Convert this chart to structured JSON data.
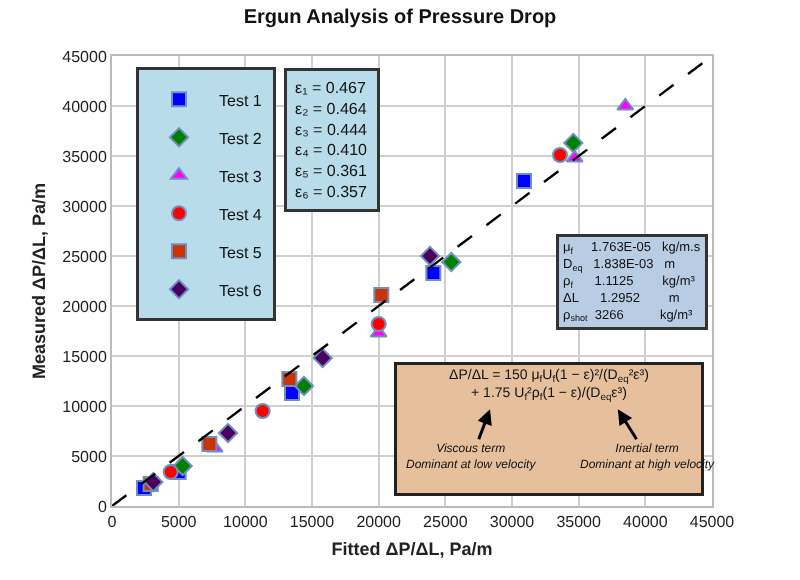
{
  "chart_data": {
    "type": "scatter",
    "title": "Ergun Analysis of Pressure Drop",
    "xlabel": "Fitted ΔP/ΔL, Pa/m",
    "ylabel": "Measured ΔP/ΔL, Pa/m",
    "xlim": [
      0,
      45000
    ],
    "ylim": [
      0,
      45000
    ],
    "xticks": [
      0,
      5000,
      10000,
      15000,
      20000,
      25000,
      30000,
      35000,
      40000,
      45000
    ],
    "yticks": [
      0,
      5000,
      10000,
      15000,
      20000,
      25000,
      30000,
      35000,
      40000,
      45000
    ],
    "grid": true,
    "legend": "top left",
    "series": [
      {
        "name": "Test 1",
        "color": "#0000ff",
        "marker": "square",
        "x": [
          2400,
          5000,
          13500,
          24100,
          30900
        ],
        "values": [
          1800,
          3400,
          11300,
          23300,
          32500
        ]
      },
      {
        "name": "Test 2",
        "color": "#008000",
        "marker": "diamond",
        "x": [
          5300,
          14400,
          25450,
          34600
        ],
        "values": [
          4000,
          12000,
          24400,
          36300
        ]
      },
      {
        "name": "Test 3",
        "color": "#ff00ff",
        "marker": "triangle",
        "x": [
          7700,
          20000,
          34700,
          38500
        ],
        "values": [
          5800,
          17300,
          34800,
          40000
        ]
      },
      {
        "name": "Test 4",
        "color": "#ff0000",
        "marker": "circle",
        "x": [
          4400,
          11300,
          20000,
          33600
        ],
        "values": [
          3400,
          9500,
          18200,
          35100
        ]
      },
      {
        "name": "Test 5",
        "color": "#cc3300",
        "marker": "square",
        "x": [
          2900,
          7300,
          13300,
          20200
        ],
        "values": [
          2200,
          6200,
          12700,
          21100
        ]
      },
      {
        "name": "Test 6",
        "color": "#4b0060",
        "marker": "diamond",
        "x": [
          3100,
          8700,
          15800,
          23850
        ],
        "values": [
          2400,
          7300,
          14800,
          25000
        ]
      },
      {
        "type": "line",
        "color": "#000000",
        "line_style": "dashed",
        "marker": "none",
        "x": [
          0,
          45000
        ],
        "values": [
          0,
          45000
        ]
      }
    ],
    "annotations": [
      "ε₁ = 0.467\nε₂ = 0.464\nε₃ = 0.444\nε₄ = 0.410\nε₅ = 0.361\nε₆ = 0.357",
      "μ$_{f}$     1.763E-05   kg/m.s\nD$_{eq}$   1.838E-03   m\nρ$_{f}$      1.1125        kg/m³\nΔL      1.2952        m\nρ$_{shot}$  3266          kg/m³",
      "ΔP/ΔL = 150 μ$_{f}$U$_{f}$(1 − ε)²/(D$_{eq}$²ε³)\n+ 1.75 U$_{f}$²ρ$_{f}$(1 − ε)/(D$_{eq}$ε³)",
      "Viscous term\nDominant at low velocity",
      "Inertial term\nDominant at high velocity"
    ]
  }
}
